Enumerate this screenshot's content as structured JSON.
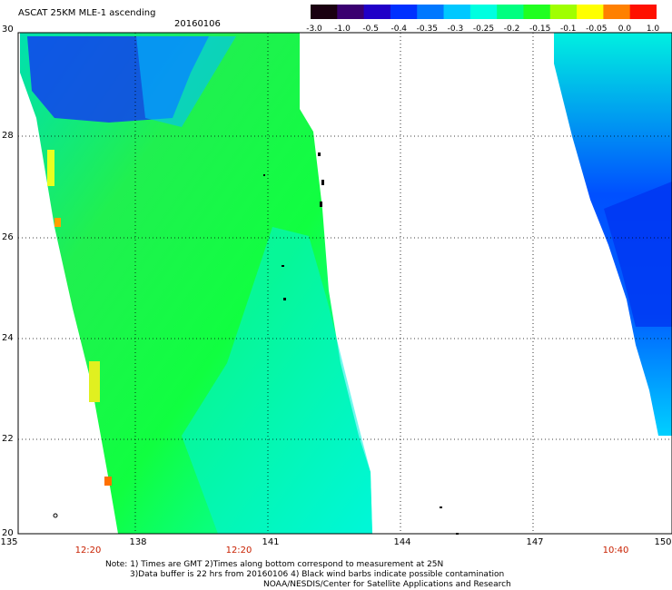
{
  "header": {
    "title": "ASCAT 25KM MLE-1 ascending",
    "date": "20160106"
  },
  "colorbar": {
    "ticks": [
      "-3.0",
      "-1.0",
      "-0.5",
      "-0.4",
      "-0.35",
      "-0.3",
      "-0.25",
      "-0.2",
      "-0.15",
      "-0.1",
      "-0.05",
      "0.0",
      "1.0"
    ],
    "colors": [
      "#1a0010",
      "#3a0070",
      "#2000c8",
      "#0030ff",
      "#0078ff",
      "#00c8ff",
      "#00ffe0",
      "#00ff80",
      "#20ff20",
      "#a0ff00",
      "#ffff00",
      "#ff8000",
      "#ff1000"
    ]
  },
  "axes": {
    "lat_labels": [
      "30",
      "28",
      "26",
      "24",
      "22",
      "20"
    ],
    "lon_labels": [
      "135",
      "138",
      "141",
      "144",
      "147",
      "150"
    ]
  },
  "times": [
    "12:20",
    "12:20",
    "10:40"
  ],
  "notes": {
    "line1": "Note: 1) Times are GMT 2)Times along bottom correspond to measurement at 25N",
    "line2": "3)Data buffer is 22 hrs from 20160106 4) Black wind barbs indicate possible contamination",
    "line3": "NOAA/NESDIS/Center for Satellite Applications and Research"
  }
}
